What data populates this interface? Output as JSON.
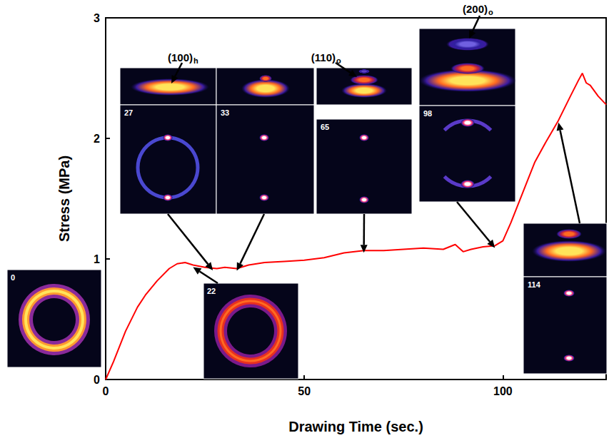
{
  "chart_data": {
    "type": "line",
    "x_label": "Drawing Time (sec.)",
    "y_label": "Stress (MPa)",
    "x": [
      0,
      2,
      5,
      8,
      10,
      13,
      16,
      18,
      20,
      22,
      25,
      28,
      30,
      33,
      36,
      40,
      45,
      50,
      55,
      60,
      65,
      70,
      75,
      80,
      85,
      88,
      90,
      92,
      95,
      98,
      100,
      102,
      105,
      108,
      111,
      114,
      117,
      119,
      120,
      121,
      122,
      124,
      126
    ],
    "values": [
      0,
      0.15,
      0.4,
      0.6,
      0.7,
      0.82,
      0.92,
      0.96,
      0.97,
      0.95,
      0.93,
      0.92,
      0.93,
      0.92,
      0.95,
      0.97,
      0.98,
      0.99,
      1.01,
      1.05,
      1.07,
      1.07,
      1.08,
      1.09,
      1.08,
      1.12,
      1.06,
      1.08,
      1.1,
      1.11,
      1.15,
      1.3,
      1.55,
      1.8,
      1.98,
      2.15,
      2.35,
      2.48,
      2.54,
      2.46,
      2.44,
      2.35,
      2.28
    ],
    "color": "#ff0000",
    "xlim": [
      0,
      126
    ],
    "xticks": [
      0,
      50,
      100
    ],
    "ylim": [
      0,
      3
    ],
    "yticks": [
      0,
      1,
      2,
      3
    ],
    "grid": false,
    "frames": [
      0,
      22,
      27,
      33,
      65,
      98,
      114
    ],
    "peak_labels": [
      "(100)h",
      "(110)o",
      "(200)o"
    ]
  }
}
